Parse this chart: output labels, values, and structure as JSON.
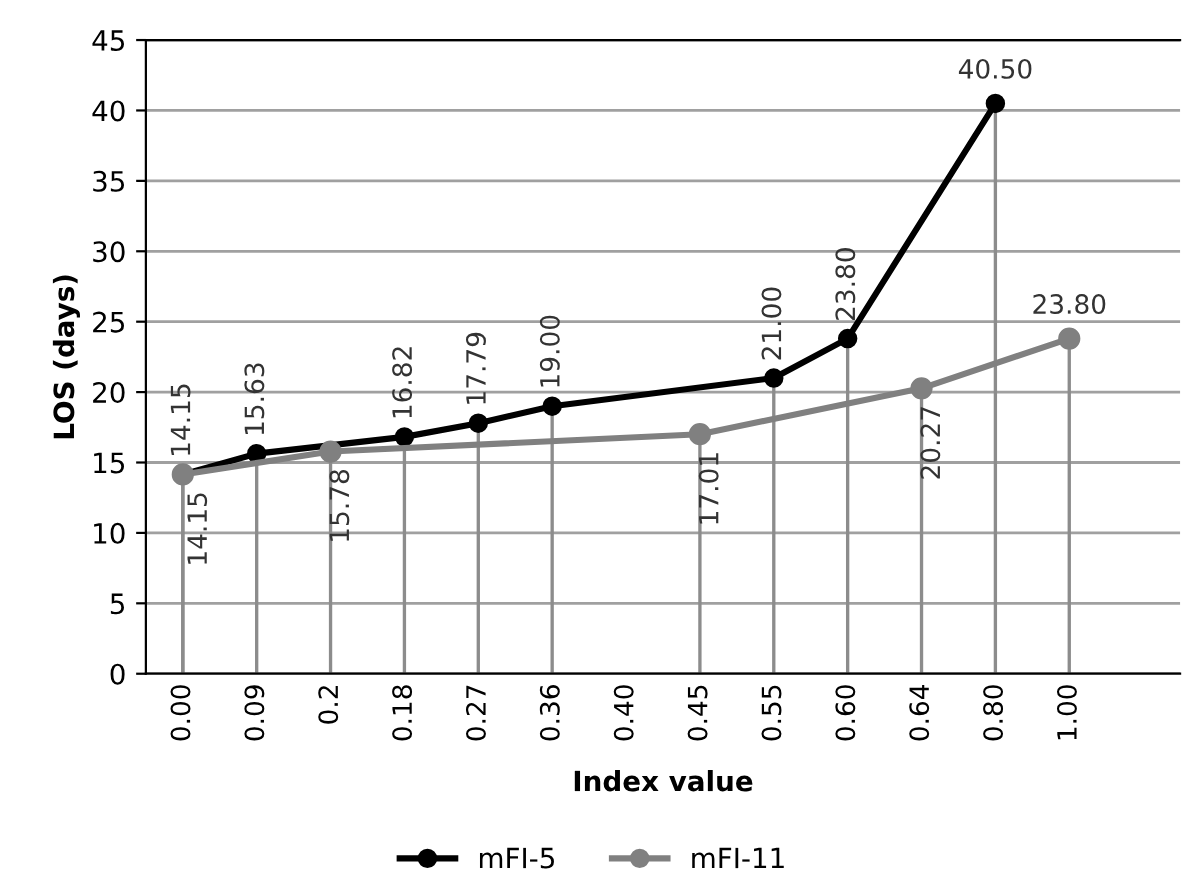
{
  "chart_data": {
    "type": "line",
    "xlabel": "Index value",
    "ylabel": "LOS (days)",
    "categories": [
      "0.00",
      "0.09",
      "0.2",
      "0.18",
      "0.27",
      "0.36",
      "0.40",
      "0.45",
      "0.55",
      "0.60",
      "0.64",
      "0.80",
      "1.00"
    ],
    "series": [
      {
        "name": "mFI-5",
        "color": "#000000",
        "values": [
          14.15,
          15.63,
          null,
          16.82,
          17.79,
          19.0,
          null,
          null,
          21.0,
          23.8,
          null,
          40.5,
          null
        ],
        "value_labels": [
          "14.15",
          "15.63",
          null,
          "16.82",
          "17.79",
          "19.00",
          null,
          null,
          "21.00",
          "23.80",
          null,
          "40.50",
          null
        ],
        "errors": [
          [
            0,
            14.15
          ],
          [
            0,
            15.63
          ],
          null,
          [
            0,
            16.82
          ],
          [
            0,
            17.79
          ],
          [
            0,
            19.0
          ],
          null,
          null,
          [
            0,
            21.0
          ],
          [
            0,
            23.8
          ],
          null,
          [
            0,
            40.5
          ],
          null
        ]
      },
      {
        "name": "mFI-11",
        "color": "#808080",
        "values": [
          14.15,
          null,
          15.78,
          null,
          null,
          null,
          null,
          17.01,
          null,
          null,
          20.27,
          null,
          23.8
        ],
        "value_labels": [
          "14.15",
          null,
          "15.78",
          null,
          null,
          null,
          null,
          "17.01",
          null,
          null,
          "20.27",
          null,
          "23.80"
        ],
        "errors": [
          [
            0,
            14.15
          ],
          null,
          [
            0,
            15.78
          ],
          null,
          null,
          null,
          null,
          [
            0,
            17.01
          ],
          null,
          null,
          [
            0,
            20.27
          ],
          null,
          [
            0,
            23.8
          ]
        ]
      }
    ],
    "ylim": [
      0,
      45
    ],
    "yticks": [
      0,
      5,
      10,
      15,
      20,
      25,
      30,
      35,
      40,
      45
    ],
    "grid": "y",
    "legend": "bottom",
    "marker": "circle",
    "line_style": "solid"
  }
}
